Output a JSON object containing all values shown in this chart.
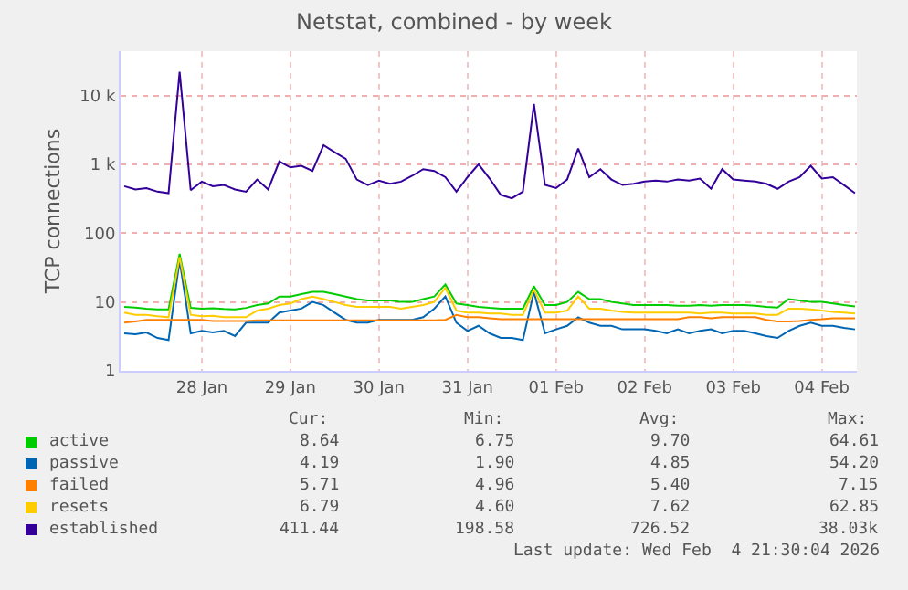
{
  "chart_data": {
    "type": "line",
    "title": "Netstat, combined - by week",
    "ylabel": "TCP connections",
    "log": "y",
    "grid": true,
    "legend": "bottom",
    "marker": "none",
    "line_style": "solid",
    "xlim": [
      "2026-01-27T14:00",
      "2026-02-04T21:30"
    ],
    "xticks": [
      {
        "value": "2026-01-28T12:00",
        "label": "28 Jan"
      },
      {
        "value": "2026-01-29T12:00",
        "label": "29 Jan"
      },
      {
        "value": "2026-01-30T12:00",
        "label": "30 Jan"
      },
      {
        "value": "2026-01-31T12:00",
        "label": "31 Jan"
      },
      {
        "value": "2026-02-01T12:00",
        "label": "01 Feb"
      },
      {
        "value": "2026-02-02T12:00",
        "label": "02 Feb"
      },
      {
        "value": "2026-02-03T12:00",
        "label": "03 Feb"
      },
      {
        "value": "2026-02-04T12:00",
        "label": "04 Feb"
      }
    ],
    "ylim": [
      1,
      44000
    ],
    "yticks": [
      1,
      10,
      100,
      {
        "value": 1000,
        "label": "1 k"
      },
      {
        "value": 10000,
        "label": "10 k"
      }
    ],
    "x": [
      "2026-01-27T15:00",
      "2026-01-27T18:00",
      "2026-01-27T21:00",
      "2026-01-28T00:00",
      "2026-01-28T03:00",
      "2026-01-28T06:00",
      "2026-01-28T09:00",
      "2026-01-28T12:00",
      "2026-01-28T15:00",
      "2026-01-28T18:00",
      "2026-01-28T21:00",
      "2026-01-29T00:00",
      "2026-01-29T03:00",
      "2026-01-29T06:00",
      "2026-01-29T09:00",
      "2026-01-29T12:00",
      "2026-01-29T15:00",
      "2026-01-29T18:00",
      "2026-01-29T21:00",
      "2026-01-30T00:00",
      "2026-01-30T03:00",
      "2026-01-30T06:00",
      "2026-01-30T09:00",
      "2026-01-30T12:00",
      "2026-01-30T15:00",
      "2026-01-30T18:00",
      "2026-01-30T21:00",
      "2026-01-31T00:00",
      "2026-01-31T03:00",
      "2026-01-31T06:00",
      "2026-01-31T09:00",
      "2026-01-31T12:00",
      "2026-01-31T15:00",
      "2026-01-31T18:00",
      "2026-01-31T21:00",
      "2026-02-01T00:00",
      "2026-02-01T03:00",
      "2026-02-01T06:00",
      "2026-02-01T09:00",
      "2026-02-01T12:00",
      "2026-02-01T15:00",
      "2026-02-01T18:00",
      "2026-02-01T21:00",
      "2026-02-02T00:00",
      "2026-02-02T03:00",
      "2026-02-02T06:00",
      "2026-02-02T09:00",
      "2026-02-02T12:00",
      "2026-02-02T15:00",
      "2026-02-02T18:00",
      "2026-02-02T21:00",
      "2026-02-03T00:00",
      "2026-02-03T03:00",
      "2026-02-03T06:00",
      "2026-02-03T09:00",
      "2026-02-03T12:00",
      "2026-02-03T15:00",
      "2026-02-03T18:00",
      "2026-02-03T21:00",
      "2026-02-04T00:00",
      "2026-02-04T03:00",
      "2026-02-04T06:00",
      "2026-02-04T09:00",
      "2026-02-04T12:00",
      "2026-02-04T15:00",
      "2026-02-04T18:00",
      "2026-02-04T21:00"
    ],
    "series": [
      {
        "name": "active",
        "color": "#00cc00",
        "values": [
          8.5,
          8.3,
          8,
          7.8,
          7.8,
          50,
          8.2,
          8,
          8.1,
          7.9,
          7.8,
          8.2,
          9,
          9.5,
          12,
          12,
          13,
          14,
          14,
          13,
          12,
          11,
          10.5,
          10.5,
          10.5,
          10,
          10,
          11,
          12,
          18,
          9.5,
          9,
          8.5,
          8.2,
          8,
          8,
          8,
          17,
          9,
          9,
          10,
          14,
          11,
          11,
          10,
          9.5,
          9,
          9,
          9,
          9,
          8.8,
          8.8,
          9,
          8.8,
          9,
          9,
          9,
          8.8,
          8.5,
          8.3,
          11,
          10.5,
          10,
          10,
          9.5,
          9,
          8.6
        ]
      },
      {
        "name": "passive",
        "color": "#0066b3",
        "values": [
          3.5,
          3.4,
          3.6,
          3,
          2.8,
          40,
          3.5,
          3.8,
          3.6,
          3.8,
          3.2,
          5,
          5,
          5,
          7,
          7.5,
          8,
          10,
          9,
          7,
          5.5,
          5,
          5,
          5.5,
          5.5,
          5.5,
          5.5,
          6,
          8,
          12,
          5,
          3.8,
          4.5,
          3.5,
          3,
          3,
          2.8,
          14,
          3.5,
          4,
          4.5,
          6,
          5,
          4.5,
          4.5,
          4,
          4,
          4,
          3.8,
          3.5,
          4,
          3.5,
          3.8,
          4,
          3.5,
          3.8,
          3.8,
          3.5,
          3.2,
          3,
          3.8,
          4.5,
          5,
          4.5,
          4.5,
          4.2,
          4
        ]
      },
      {
        "name": "failed",
        "color": "#ff8000",
        "values": [
          5,
          5.2,
          5.5,
          5.5,
          5.5,
          5.5,
          5.5,
          5.5,
          5.3,
          5.3,
          5.3,
          5.3,
          5.4,
          5.4,
          5.4,
          5.4,
          5.4,
          5.4,
          5.4,
          5.4,
          5.4,
          5.4,
          5.4,
          5.4,
          5.4,
          5.4,
          5.4,
          5.4,
          5.4,
          5.5,
          6.5,
          6,
          6,
          5.8,
          5.6,
          5.6,
          5.6,
          5.6,
          5.6,
          5.6,
          5.6,
          5.6,
          5.6,
          5.6,
          5.6,
          5.6,
          5.6,
          5.6,
          5.6,
          5.6,
          5.6,
          6,
          6,
          5.8,
          6,
          6,
          6,
          6,
          5.5,
          5.2,
          5.2,
          5.3,
          5.5,
          5.6,
          5.8,
          5.8,
          5.8
        ]
      },
      {
        "name": "resets",
        "color": "#ffcc00",
        "values": [
          7,
          6.5,
          6.5,
          6.2,
          6,
          45,
          6.5,
          6.2,
          6.3,
          6,
          6,
          6,
          7.5,
          8,
          9,
          9.5,
          11,
          12,
          11,
          10,
          9,
          8.5,
          8.5,
          8.5,
          8.5,
          8,
          8.5,
          9,
          10,
          16,
          7.5,
          7,
          7,
          6.8,
          6.8,
          6.5,
          6.5,
          15,
          7,
          7,
          7.5,
          12,
          8,
          8,
          7.5,
          7.2,
          7,
          7,
          7,
          7,
          7,
          7,
          6.8,
          7,
          7,
          6.8,
          6.8,
          6.8,
          6.5,
          6.5,
          8,
          8,
          7.8,
          7.5,
          7.2,
          7,
          6.8
        ]
      },
      {
        "name": "established",
        "color": "#330099",
        "values": [
          480,
          430,
          450,
          400,
          380,
          22000,
          420,
          560,
          480,
          500,
          430,
          400,
          600,
          430,
          1100,
          900,
          950,
          800,
          1900,
          1500,
          1200,
          600,
          500,
          580,
          520,
          560,
          680,
          850,
          800,
          650,
          400,
          650,
          1000,
          620,
          360,
          320,
          400,
          7500,
          500,
          450,
          600,
          1700,
          650,
          850,
          600,
          500,
          520,
          560,
          580,
          560,
          600,
          580,
          620,
          440,
          850,
          600,
          580,
          560,
          520,
          440,
          560,
          650,
          950,
          620,
          650,
          500,
          380
        ]
      }
    ],
    "annotations": [
      "Cur:",
      "Min:",
      "Avg:",
      "Max:",
      "8.64",
      "6.75",
      "9.70",
      "64.61",
      "4.19",
      "1.90",
      "4.85",
      "54.20",
      "5.71",
      "4.96",
      "5.40",
      "7.15",
      "6.79",
      "4.60",
      "7.62",
      "62.85",
      "411.44",
      "198.58",
      "726.52",
      "38.03k",
      "Last update: Wed Feb  4 21:30:04 2026"
    ]
  }
}
